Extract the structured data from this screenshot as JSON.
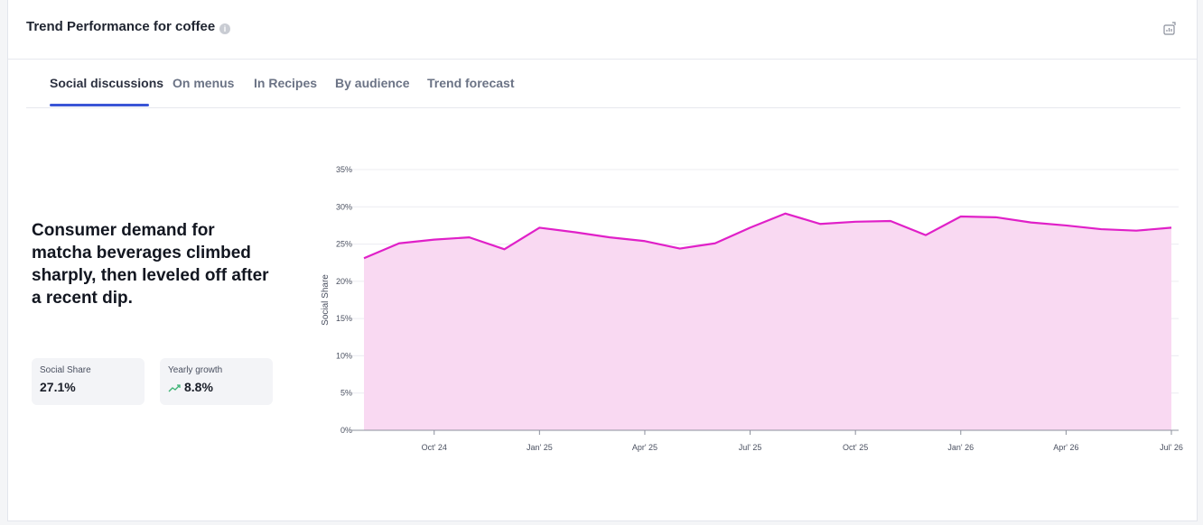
{
  "header": {
    "title": "Trend Performance for coffee",
    "info_icon": "info-icon",
    "export_icon": "export-chart-icon"
  },
  "tabs": [
    {
      "label": "Social discussions",
      "active": true
    },
    {
      "label": "On menus",
      "active": false
    },
    {
      "label": "In Recipes",
      "active": false
    },
    {
      "label": "By audience",
      "active": false
    },
    {
      "label": "Trend forecast",
      "active": false
    }
  ],
  "headline": "Consumer demand for matcha beverages climbed sharply, then leveled off after a recent dip.",
  "stats": [
    {
      "label": "Social Share",
      "value": "27.1%"
    },
    {
      "label": "Yearly growth",
      "value": "8.8%",
      "icon": "trending-up-icon"
    }
  ],
  "colors": {
    "accent": "#3a55d6",
    "line": "#e020c8",
    "fill": "#f9d9f2",
    "growth": "#3bb273"
  },
  "chart_data": {
    "type": "area",
    "ylabel": "Social Share",
    "ylim": [
      0,
      35
    ],
    "yticks": [
      "0%",
      "5%",
      "10%",
      "15%",
      "20%",
      "25%",
      "30%",
      "35%"
    ],
    "ytick_values": [
      0,
      5,
      10,
      15,
      20,
      25,
      30,
      35
    ],
    "x_start": "2024-08",
    "x_end": "2026-07",
    "xticks": [
      {
        "label": "Oct' 24",
        "x": "2024-10"
      },
      {
        "label": "Jan' 25",
        "x": "2025-01"
      },
      {
        "label": "Apr' 25",
        "x": "2025-04"
      },
      {
        "label": "Jul' 25",
        "x": "2025-07"
      },
      {
        "label": "Oct' 25",
        "x": "2025-10"
      },
      {
        "label": "Jan' 26",
        "x": "2026-01"
      },
      {
        "label": "Apr' 26",
        "x": "2026-04"
      },
      {
        "label": "Jul' 26",
        "x": "2026-07"
      }
    ],
    "grid": true,
    "series": [
      {
        "name": "Social Share",
        "points": [
          {
            "x": "2024-08",
            "y": 23.1
          },
          {
            "x": "2024-09",
            "y": 25.1
          },
          {
            "x": "2024-10",
            "y": 25.6
          },
          {
            "x": "2024-11",
            "y": 25.9
          },
          {
            "x": "2024-12",
            "y": 24.3
          },
          {
            "x": "2025-01",
            "y": 27.2
          },
          {
            "x": "2025-02",
            "y": 26.6
          },
          {
            "x": "2025-03",
            "y": 25.9
          },
          {
            "x": "2025-04",
            "y": 25.4
          },
          {
            "x": "2025-05",
            "y": 24.4
          },
          {
            "x": "2025-06",
            "y": 25.1
          },
          {
            "x": "2025-07",
            "y": 27.2
          },
          {
            "x": "2025-08",
            "y": 29.1
          },
          {
            "x": "2025-09",
            "y": 27.7
          },
          {
            "x": "2025-10",
            "y": 28.0
          },
          {
            "x": "2025-11",
            "y": 28.1
          },
          {
            "x": "2025-12",
            "y": 26.2
          },
          {
            "x": "2026-01",
            "y": 28.7
          },
          {
            "x": "2026-02",
            "y": 28.6
          },
          {
            "x": "2026-03",
            "y": 27.9
          },
          {
            "x": "2026-04",
            "y": 27.5
          },
          {
            "x": "2026-05",
            "y": 27.0
          },
          {
            "x": "2026-06",
            "y": 26.8
          },
          {
            "x": "2026-07",
            "y": 27.2
          }
        ]
      }
    ]
  }
}
